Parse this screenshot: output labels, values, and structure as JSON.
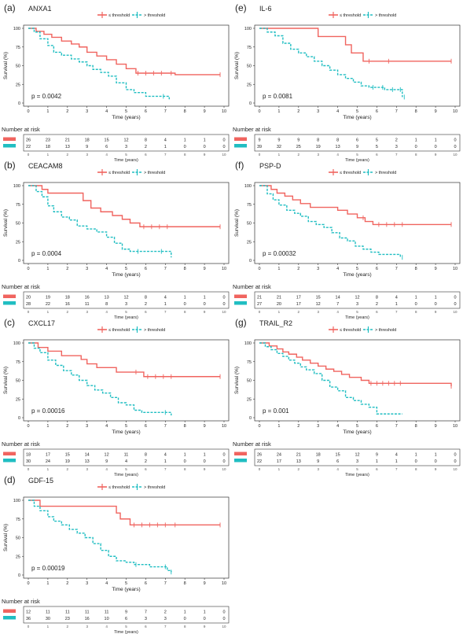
{
  "colors": {
    "low": "#F0645F",
    "high": "#20BEC2",
    "axis": "#333333",
    "grid": "#ffffff"
  },
  "legend": {
    "low_label": "≤ threshold",
    "high_label": "> threshold"
  },
  "common": {
    "xlabel": "Time (years)",
    "ylabel": "Survival (%)",
    "risk_title": "Number at risk",
    "y_ticks": [
      "0",
      "25",
      "50",
      "75",
      "100"
    ],
    "x_ticks": [
      "0",
      "1",
      "2",
      "3",
      "4",
      "5",
      "6",
      "7",
      "8",
      "9",
      "10"
    ]
  },
  "chart_data": [
    {
      "panel": "(a)",
      "title": "ANXA1",
      "type": "line",
      "pvalue": "p = 0.0042",
      "xlim": [
        0,
        10
      ],
      "ylim": [
        0,
        100
      ],
      "series": [
        {
          "group": "low",
          "x": [
            0,
            0.4,
            0.8,
            1.2,
            1.7,
            2.2,
            2.6,
            3.0,
            3.5,
            4.0,
            4.5,
            5.0,
            5.5,
            7.5,
            9.8
          ],
          "y": [
            100,
            96,
            92,
            88,
            83,
            79,
            75,
            68,
            63,
            58,
            52,
            46,
            40,
            38,
            38
          ],
          "censor_x": [
            5.6,
            6.0,
            6.4,
            6.8,
            7.3,
            9.8
          ]
        },
        {
          "group": "high",
          "x": [
            0,
            0.3,
            0.6,
            1.0,
            1.3,
            1.7,
            2.2,
            2.6,
            3.0,
            3.3,
            3.7,
            4.1,
            4.5,
            5.0,
            5.4,
            6.0,
            6.8,
            7.2
          ],
          "y": [
            100,
            95,
            86,
            77,
            68,
            64,
            59,
            55,
            50,
            45,
            41,
            36,
            27,
            18,
            14,
            9,
            9,
            5
          ],
          "censor_x": [
            6.9
          ]
        }
      ],
      "risk": {
        "low": [
          "26",
          "23",
          "21",
          "18",
          "15",
          "12",
          "8",
          "4",
          "1",
          "1",
          "0"
        ],
        "high": [
          "22",
          "18",
          "13",
          "9",
          "6",
          "3",
          "2",
          "1",
          "0",
          "0",
          "0"
        ]
      }
    },
    {
      "panel": "(b)",
      "title": "CEACAM8",
      "type": "line",
      "pvalue": "p = 0.0004",
      "xlim": [
        0,
        10
      ],
      "ylim": [
        0,
        100
      ],
      "series": [
        {
          "group": "low",
          "x": [
            0,
            0.7,
            1.0,
            2.5,
            2.8,
            3.2,
            3.7,
            4.3,
            4.8,
            5.2,
            5.7,
            9.8
          ],
          "y": [
            100,
            95,
            90,
            90,
            80,
            70,
            65,
            60,
            55,
            50,
            45,
            45
          ],
          "censor_x": [
            5.9,
            6.3,
            6.7,
            7.1,
            9.8
          ]
        },
        {
          "group": "high",
          "x": [
            0,
            0.4,
            0.7,
            1.0,
            1.3,
            1.7,
            2.1,
            2.5,
            3.0,
            3.5,
            4.0,
            4.4,
            4.8,
            5.2,
            5.6,
            6.2,
            7.3
          ],
          "y": [
            100,
            92,
            85,
            73,
            65,
            58,
            54,
            46,
            42,
            38,
            31,
            23,
            15,
            12,
            12,
            12,
            4
          ],
          "censor_x": [
            5.6,
            6.8
          ]
        }
      ],
      "risk": {
        "low": [
          "20",
          "19",
          "18",
          "16",
          "13",
          "12",
          "8",
          "4",
          "1",
          "1",
          "0"
        ],
        "high": [
          "28",
          "22",
          "16",
          "11",
          "8",
          "3",
          "2",
          "1",
          "0",
          "0",
          "0"
        ]
      }
    },
    {
      "panel": "(c)",
      "title": "CXCL17",
      "type": "line",
      "pvalue": "p = 0.00016",
      "xlim": [
        0,
        10
      ],
      "ylim": [
        0,
        100
      ],
      "series": [
        {
          "group": "low",
          "x": [
            0,
            0.5,
            1.0,
            1.7,
            2.7,
            3.0,
            3.5,
            4.5,
            5.5,
            5.9,
            9.8
          ],
          "y": [
            100,
            94,
            89,
            83,
            78,
            72,
            67,
            61,
            61,
            55,
            55
          ],
          "censor_x": [
            5.5,
            6.1,
            6.5,
            6.9,
            7.3,
            9.8
          ]
        },
        {
          "group": "high",
          "x": [
            0,
            0.3,
            0.6,
            1.0,
            1.4,
            1.8,
            2.2,
            2.6,
            3.0,
            3.4,
            3.8,
            4.2,
            4.6,
            5.0,
            5.4,
            5.8,
            6.4,
            7.3
          ],
          "y": [
            100,
            93,
            87,
            77,
            70,
            63,
            57,
            50,
            43,
            37,
            33,
            27,
            20,
            17,
            10,
            7,
            7,
            3
          ],
          "censor_x": [
            7.0
          ]
        }
      ],
      "risk": {
        "low": [
          "18",
          "17",
          "15",
          "14",
          "12",
          "11",
          "8",
          "4",
          "1",
          "1",
          "0"
        ],
        "high": [
          "30",
          "24",
          "19",
          "13",
          "9",
          "4",
          "2",
          "1",
          "0",
          "0",
          "0"
        ]
      }
    },
    {
      "panel": "(d)",
      "title": "GDF-15",
      "type": "line",
      "pvalue": "p = 0.00019",
      "xlim": [
        0,
        10
      ],
      "ylim": [
        0,
        100
      ],
      "series": [
        {
          "group": "low",
          "x": [
            0,
            0.6,
            1.0,
            4.5,
            4.7,
            5.2,
            9.8
          ],
          "y": [
            100,
            92,
            92,
            83,
            75,
            67,
            67
          ],
          "censor_x": [
            5.4,
            5.8,
            6.2,
            6.6,
            7.0,
            7.5,
            9.8
          ]
        },
        {
          "group": "high",
          "x": [
            0,
            0.3,
            0.6,
            1.0,
            1.3,
            1.7,
            2.1,
            2.5,
            2.9,
            3.3,
            3.7,
            4.1,
            4.5,
            5.0,
            5.4,
            6.2,
            7.1,
            7.3
          ],
          "y": [
            100,
            92,
            86,
            78,
            72,
            67,
            61,
            56,
            50,
            42,
            33,
            25,
            19,
            17,
            14,
            11,
            6,
            4
          ],
          "censor_x": [
            5.5,
            7.0,
            7.3
          ]
        }
      ],
      "risk": {
        "low": [
          "12",
          "11",
          "11",
          "11",
          "11",
          "9",
          "7",
          "2",
          "1",
          "1",
          "0"
        ],
        "high": [
          "36",
          "30",
          "23",
          "16",
          "10",
          "6",
          "3",
          "3",
          "0",
          "0",
          "0"
        ]
      }
    },
    {
      "panel": "(e)",
      "title": "IL-6",
      "type": "line",
      "pvalue": "p = 0.0081",
      "xlim": [
        0,
        10
      ],
      "ylim": [
        0,
        100
      ],
      "series": [
        {
          "group": "low",
          "x": [
            0,
            2.9,
            3.0,
            4.4,
            4.7,
            5.3,
            9.8
          ],
          "y": [
            100,
            100,
            89,
            78,
            67,
            56,
            56
          ],
          "censor_x": [
            5.6,
            6.6,
            9.8
          ]
        },
        {
          "group": "high",
          "x": [
            0,
            0.4,
            0.8,
            1.2,
            1.6,
            2.0,
            2.4,
            2.8,
            3.2,
            3.6,
            4.0,
            4.4,
            4.8,
            5.2,
            5.6,
            6.4,
            7.3
          ],
          "y": [
            100,
            95,
            90,
            80,
            72,
            67,
            62,
            56,
            50,
            44,
            38,
            33,
            28,
            23,
            21,
            18,
            8
          ],
          "censor_x": [
            5.8,
            6.3,
            6.8,
            7.2,
            7.4
          ]
        }
      ],
      "risk": {
        "low": [
          "9",
          "9",
          "9",
          "8",
          "8",
          "6",
          "5",
          "2",
          "1",
          "1",
          "0"
        ],
        "high": [
          "39",
          "32",
          "25",
          "19",
          "13",
          "9",
          "5",
          "3",
          "0",
          "0",
          "0"
        ]
      }
    },
    {
      "panel": "(f)",
      "title": "PSP-D",
      "type": "line",
      "pvalue": "p = 0.00032",
      "xlim": [
        0,
        10
      ],
      "ylim": [
        0,
        100
      ],
      "series": [
        {
          "group": "low",
          "x": [
            0,
            0.6,
            0.9,
            1.3,
            1.7,
            2.1,
            2.6,
            3.5,
            4.0,
            4.5,
            5.0,
            5.4,
            5.8,
            9.8
          ],
          "y": [
            100,
            95,
            90,
            86,
            81,
            76,
            71,
            71,
            67,
            62,
            57,
            52,
            48,
            48
          ],
          "censor_x": [
            5.3,
            6.1,
            6.5,
            6.9,
            7.3,
            9.8
          ]
        },
        {
          "group": "high",
          "x": [
            0,
            0.4,
            0.7,
            1.0,
            1.4,
            1.8,
            2.1,
            2.5,
            2.9,
            3.3,
            3.7,
            4.1,
            4.5,
            4.9,
            5.3,
            5.7,
            6.1,
            7.2
          ],
          "y": [
            100,
            89,
            81,
            74,
            67,
            63,
            59,
            52,
            48,
            44,
            37,
            30,
            26,
            19,
            15,
            11,
            8,
            4
          ],
          "censor_x": [
            7.3
          ]
        }
      ],
      "risk": {
        "low": [
          "21",
          "21",
          "17",
          "15",
          "14",
          "12",
          "8",
          "4",
          "1",
          "1",
          "0"
        ],
        "high": [
          "27",
          "20",
          "17",
          "12",
          "7",
          "3",
          "2",
          "1",
          "0",
          "0",
          "0"
        ]
      }
    },
    {
      "panel": "(g)",
      "title": "TRAIL_R2",
      "type": "line",
      "pvalue": "p = 0.001",
      "xlim": [
        0,
        10
      ],
      "ylim": [
        0,
        100
      ],
      "series": [
        {
          "group": "low",
          "x": [
            0,
            0.5,
            0.9,
            1.2,
            1.5,
            1.9,
            2.2,
            2.6,
            3.0,
            3.4,
            3.8,
            4.2,
            4.6,
            5.2,
            5.6,
            9.8
          ],
          "y": [
            100,
            96,
            92,
            88,
            85,
            81,
            77,
            73,
            69,
            65,
            62,
            58,
            54,
            50,
            46,
            42
          ],
          "censor_x": [
            5.7,
            6.0,
            6.3,
            6.6,
            6.9,
            7.2,
            9.8
          ]
        },
        {
          "group": "high",
          "x": [
            0,
            0.3,
            0.6,
            0.9,
            1.2,
            1.5,
            1.8,
            2.1,
            2.4,
            2.8,
            3.2,
            3.6,
            4.0,
            4.4,
            4.8,
            5.2,
            5.6,
            6.0,
            7.3
          ],
          "y": [
            100,
            95,
            91,
            86,
            82,
            77,
            73,
            68,
            64,
            59,
            50,
            41,
            36,
            27,
            23,
            18,
            14,
            5,
            5
          ],
          "censor_x": []
        }
      ],
      "risk": {
        "low": [
          "26",
          "24",
          "21",
          "18",
          "15",
          "12",
          "9",
          "4",
          "1",
          "1",
          "0"
        ],
        "high": [
          "22",
          "17",
          "13",
          "9",
          "6",
          "3",
          "1",
          "1",
          "0",
          "0",
          "0"
        ]
      }
    }
  ]
}
